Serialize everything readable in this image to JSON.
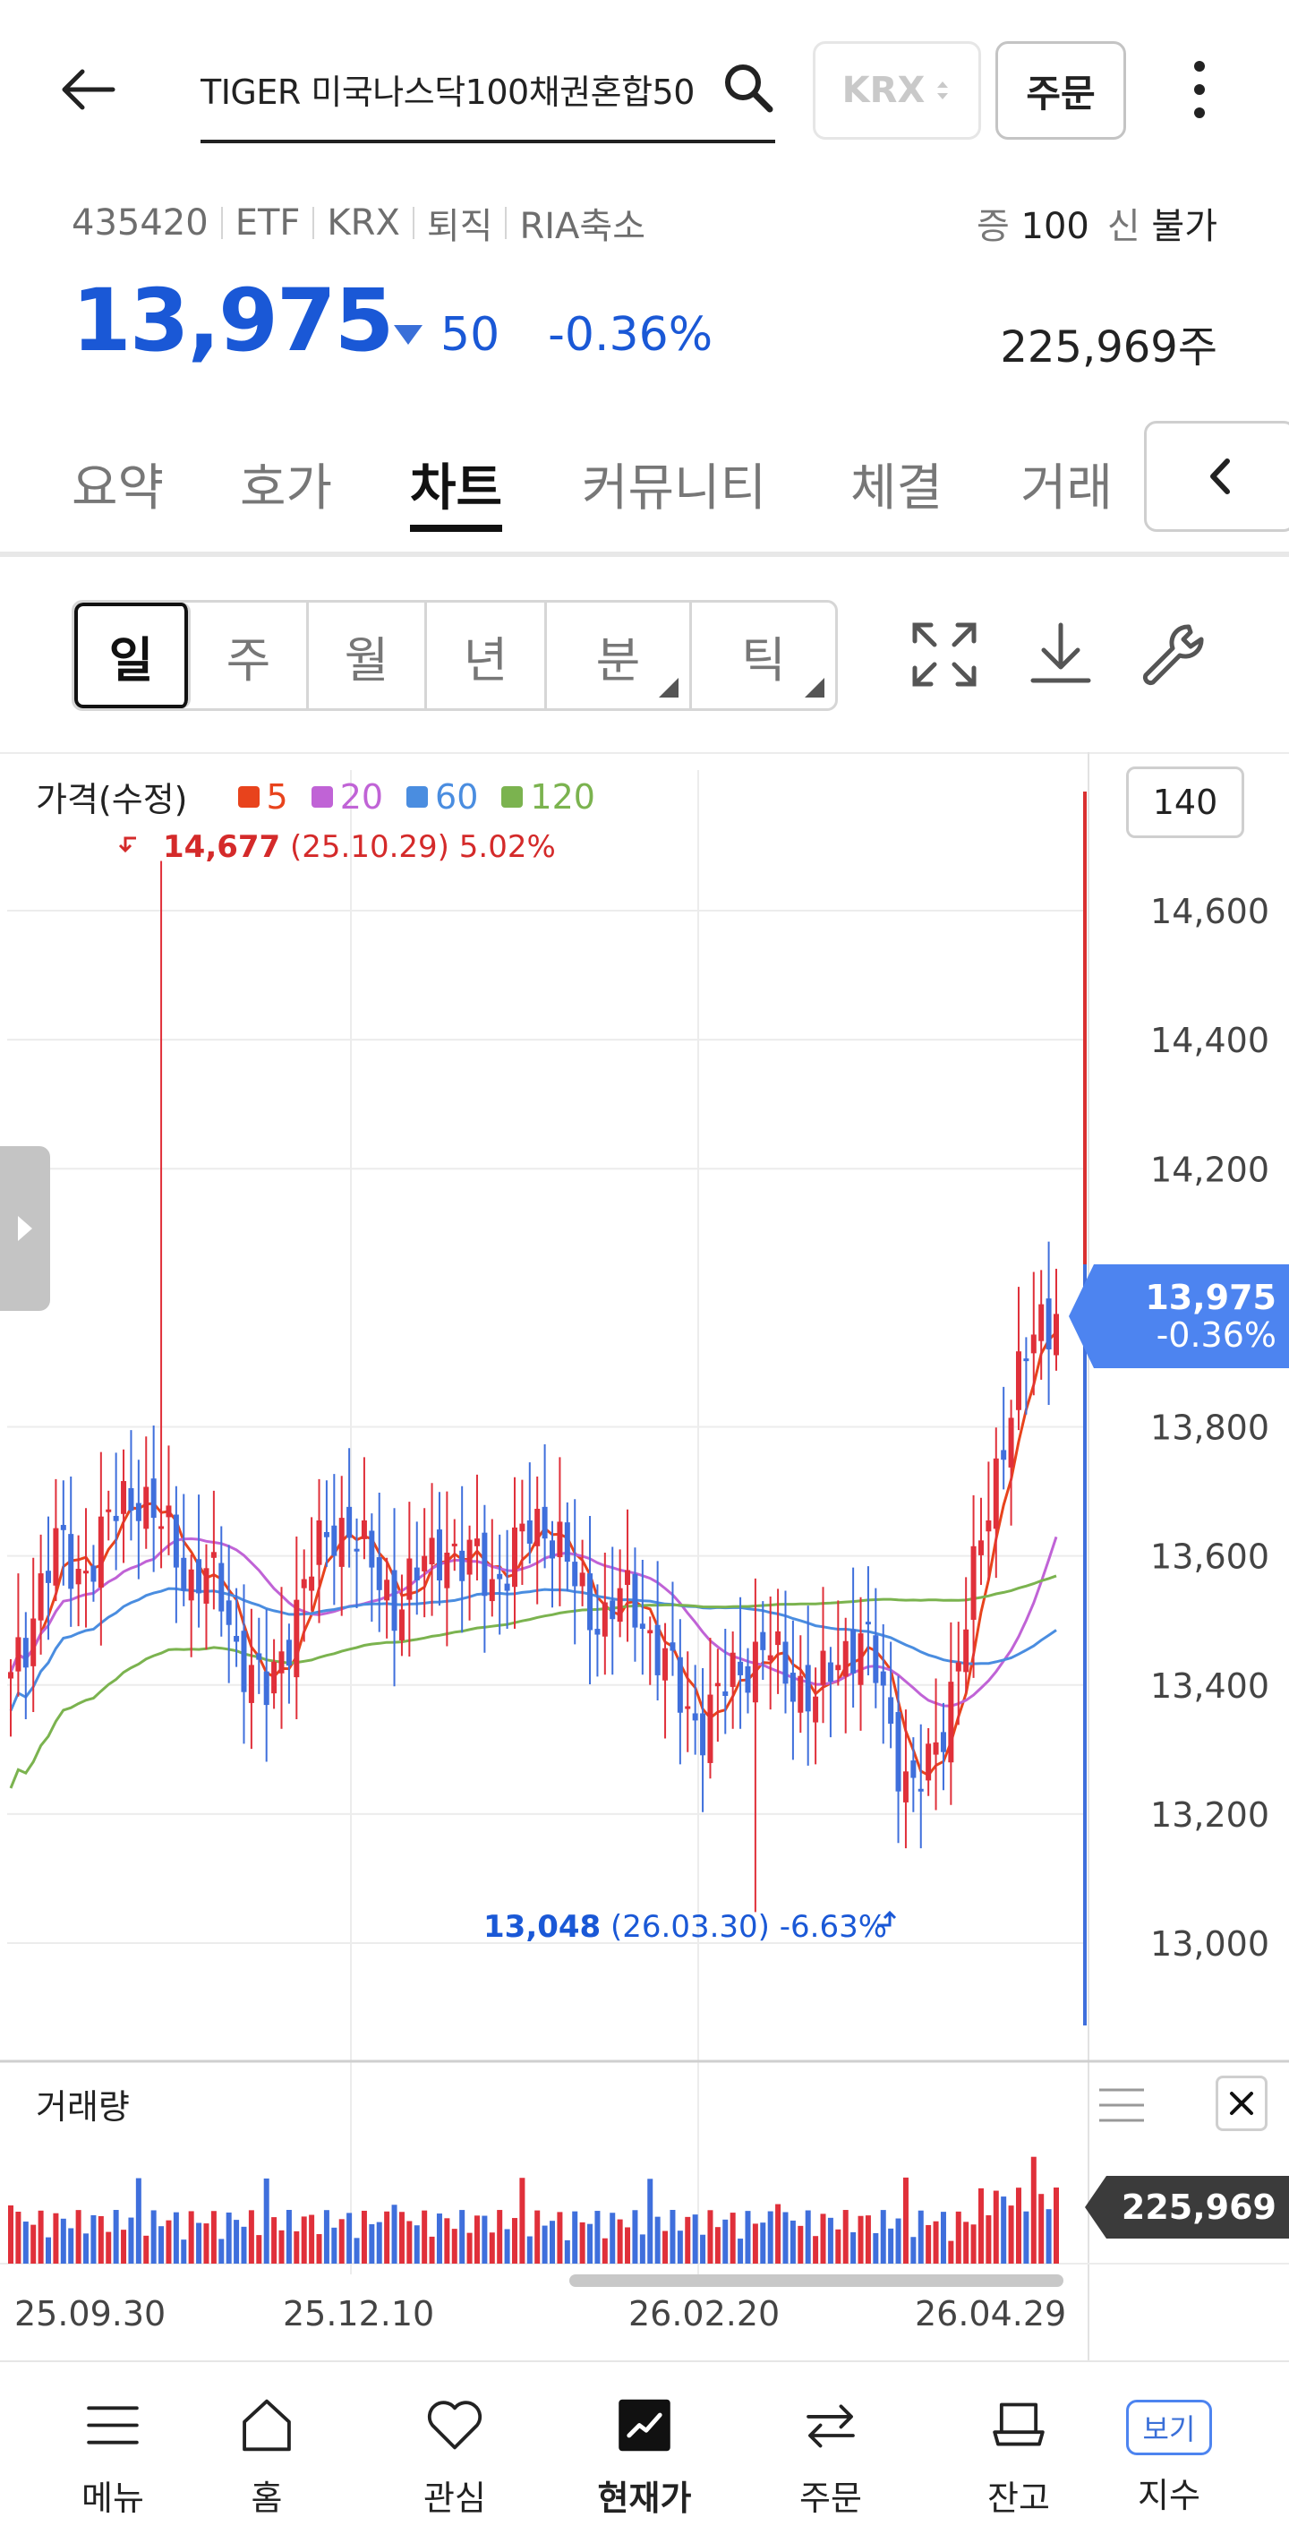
{
  "header": {
    "search_value": "TIGER 미국나스닥100채권혼합50",
    "market_label": "KRX",
    "order_label": "주문"
  },
  "info": {
    "code": "435420",
    "tags": [
      "ETF",
      "KRX",
      "퇴직",
      "RIA축소"
    ],
    "margin_label": "증",
    "margin_value": "100",
    "credit_label": "신",
    "credit_value": "불가",
    "price": "13,975",
    "change": "50",
    "change_pct": "-0.36%",
    "volume": "225,969주"
  },
  "tabs": [
    "요약",
    "호가",
    "차트",
    "커뮤니티",
    "체결",
    "거래"
  ],
  "active_tab": "차트",
  "periods": [
    "일",
    "주",
    "월",
    "년",
    "분",
    "틱"
  ],
  "active_period": "일",
  "chart": {
    "legend_title": "가격(수정)",
    "ma": [
      {
        "label": "5",
        "color": "#e8431c"
      },
      {
        "label": "20",
        "color": "#c063d6"
      },
      {
        "label": "60",
        "color": "#4a8de0"
      },
      {
        "label": "120",
        "color": "#7bb34f"
      }
    ],
    "count": "140",
    "high_value": "14,677",
    "high_rest": " (25.10.29) 5.02%",
    "low_value": "13,048",
    "low_rest": " (26.03.30) -6.63%",
    "price_tag_value": "13,975",
    "price_tag_pct": "-0.36%",
    "volume_title": "거래량",
    "volume_tag": "225,969",
    "x_labels": [
      "25.09.30",
      "25.12.10",
      "26.02.20",
      "26.04.29"
    ],
    "up_color": "#e0303a",
    "down_color": "#3f6fdc"
  },
  "chart_data": {
    "type": "candlestick",
    "title": "",
    "y_ticks": [
      14600,
      14400,
      14200,
      13800,
      13600,
      13400,
      13200,
      13000
    ],
    "ylim": [
      12860,
      14800
    ],
    "x_tick_labels": [
      "25.09.30",
      "25.12.10",
      "26.02.20",
      "26.04.29"
    ],
    "last_close": 13975,
    "last_volume": 225969,
    "high_marker": {
      "value": 14677,
      "date": "25.10.29",
      "pct": "5.02%"
    },
    "low_marker": {
      "value": 13048,
      "date": "26.03.30",
      "pct": "-6.63%"
    },
    "close_path": [
      13400,
      13470,
      13580,
      13620,
      13560,
      13600,
      13650,
      13680,
      13700,
      13660,
      13620,
      13560,
      13580,
      13540,
      13460,
      13420,
      13380,
      13460,
      13540,
      13600,
      13640,
      13650,
      13600,
      13560,
      13520,
      13560,
      13600,
      13620,
      13580,
      13600,
      13560,
      13580,
      13640,
      13660,
      13620,
      13560,
      13520,
      13500,
      13540,
      13520,
      13460,
      13420,
      13360,
      13340,
      13380,
      13420,
      13440,
      13460,
      13420,
      13400,
      13380,
      13420,
      13460,
      13480,
      13400,
      13300,
      13240,
      13260,
      13340,
      13460,
      13580,
      13700,
      13820,
      13900,
      13960,
      13975
    ]
  }
}
